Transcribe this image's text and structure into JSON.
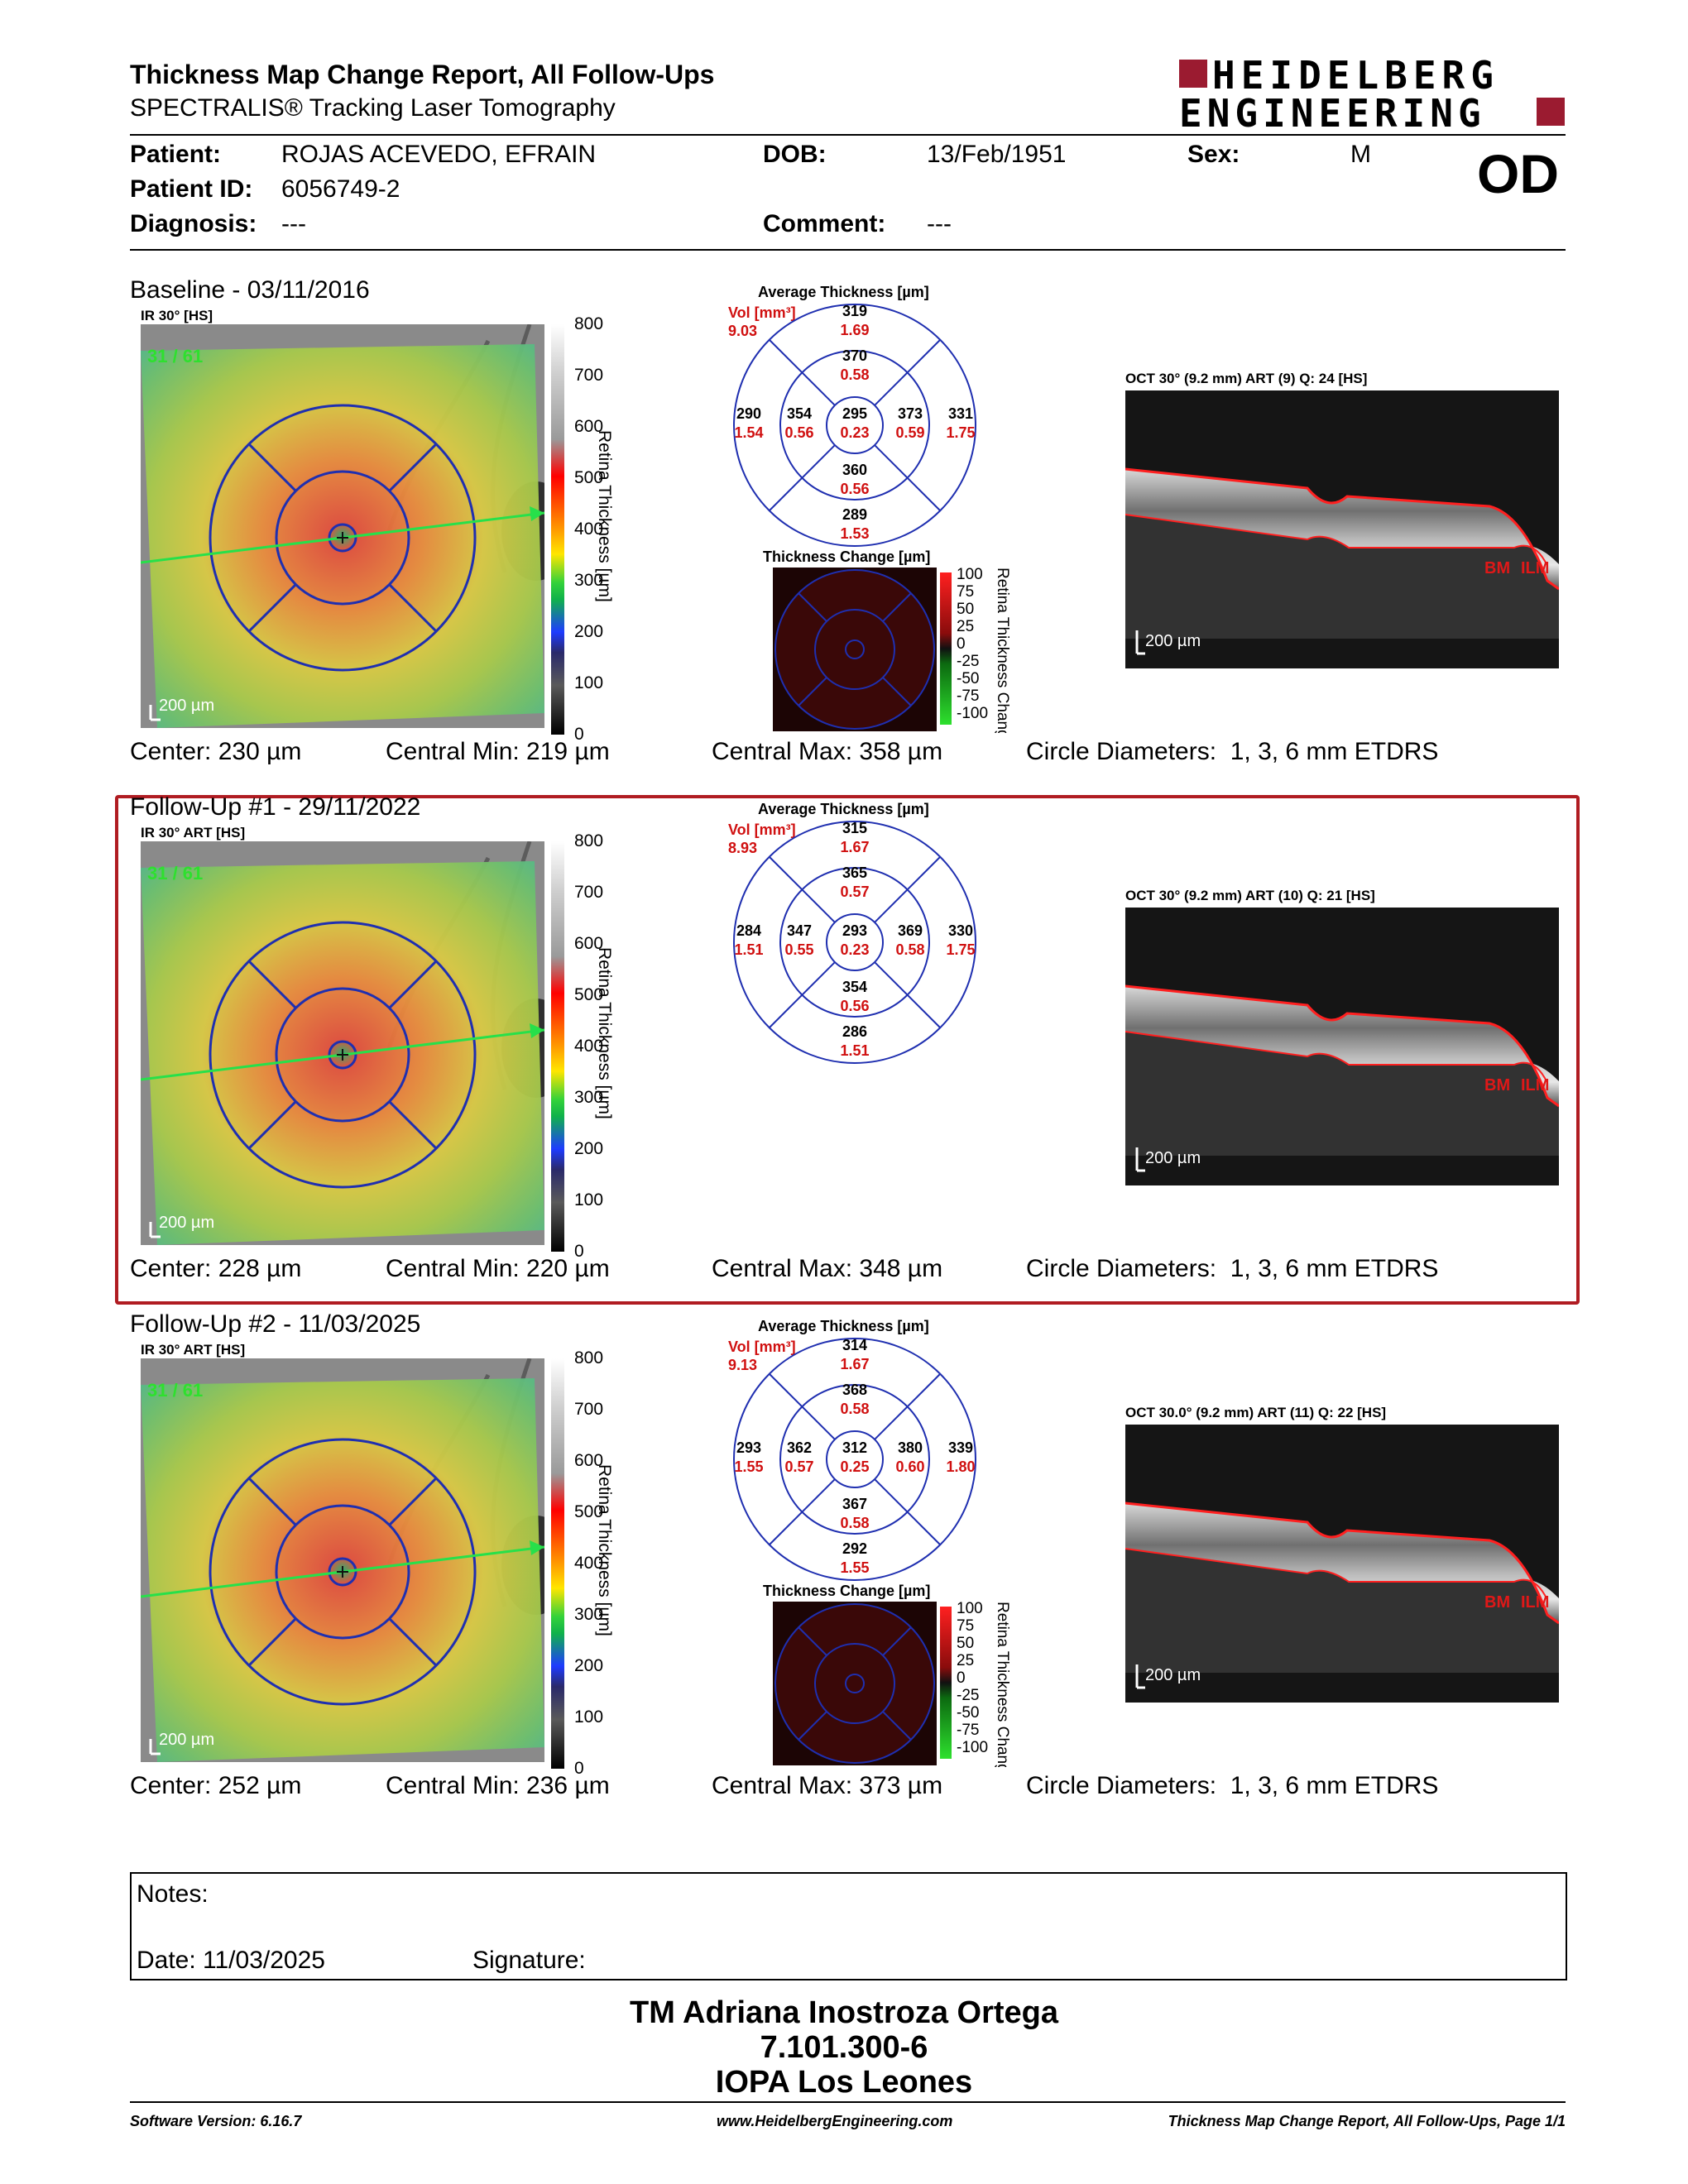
{
  "header": {
    "title": "Thickness Map Change Report, All Follow-Ups",
    "subtitle": "SPECTRALIS® Tracking Laser Tomography",
    "logo_line1": "HEIDELBERG",
    "logo_line2": "ENGINEERING",
    "brand_color": "#9b1b30"
  },
  "patient": {
    "patient_label": "Patient:",
    "patient_value": "ROJAS ACEVEDO, EFRAIN",
    "dob_label": "DOB:",
    "dob_value": "13/Feb/1951",
    "sex_label": "Sex:",
    "sex_value": "M",
    "id_label": "Patient ID:",
    "id_value": "6056749-2",
    "diagnosis_label": "Diagnosis:",
    "diagnosis_value": "---",
    "comment_label": "Comment:",
    "comment_value": "---",
    "eye": "OD"
  },
  "exams": [
    {
      "title": "Baseline - 03/11/2016",
      "ir_label": "IR 30° [HS]",
      "frames": "31 / 61",
      "scale_bar": "200 µm",
      "scale_ticks": [
        "800",
        "700",
        "600",
        "500",
        "400",
        "300",
        "200",
        "100",
        "0"
      ],
      "scale_axis": "Retina Thickness [µm]",
      "avg_title": "Average Thickness [µm]",
      "vol_label": "Vol [mm³]",
      "vol_value": "9.03",
      "etdrs": {
        "superior_outer": [
          "319",
          "1.69"
        ],
        "superior_inner": [
          "370",
          "0.58"
        ],
        "temporal_outer": [
          "290",
          "1.54"
        ],
        "temporal_inner": [
          "354",
          "0.56"
        ],
        "center": [
          "295",
          "0.23"
        ],
        "nasal_inner": [
          "373",
          "0.59"
        ],
        "nasal_outer": [
          "331",
          "1.75"
        ],
        "inferior_inner": [
          "360",
          "0.56"
        ],
        "inferior_outer": [
          "289",
          "1.53"
        ]
      },
      "has_change": true,
      "change_title": "Thickness Change [µm]",
      "change_ticks": [
        "100",
        "75",
        "50",
        "25",
        "0",
        "-25",
        "-50",
        "-75",
        "-100"
      ],
      "change_axis": "Retina Thickness Change",
      "oct_label": "OCT 30° (9.2 mm) ART (9) Q: 24 [HS]",
      "oct_scale": "200 µm",
      "bm": "BM",
      "ilm": "ILM",
      "stats": {
        "center": "Center: 230 µm",
        "cmin": "Central Min: 219 µm",
        "cmax": "Central Max: 358 µm",
        "diam": "Circle Diameters:  1, 3, 6 mm ETDRS"
      }
    },
    {
      "title": "Follow-Up #1 - 29/11/2022",
      "ir_label": "IR 30° ART [HS]",
      "frames": "31 / 61",
      "scale_bar": "200 µm",
      "scale_ticks": [
        "800",
        "700",
        "600",
        "500",
        "400",
        "300",
        "200",
        "100",
        "0"
      ],
      "scale_axis": "Retina Thickness [µm]",
      "avg_title": "Average Thickness [µm]",
      "vol_label": "Vol [mm³]",
      "vol_value": "8.93",
      "etdrs": {
        "superior_outer": [
          "315",
          "1.67"
        ],
        "superior_inner": [
          "365",
          "0.57"
        ],
        "temporal_outer": [
          "284",
          "1.51"
        ],
        "temporal_inner": [
          "347",
          "0.55"
        ],
        "center": [
          "293",
          "0.23"
        ],
        "nasal_inner": [
          "369",
          "0.58"
        ],
        "nasal_outer": [
          "330",
          "1.75"
        ],
        "inferior_inner": [
          "354",
          "0.56"
        ],
        "inferior_outer": [
          "286",
          "1.51"
        ]
      },
      "has_change": false,
      "oct_label": "OCT 30° (9.2 mm) ART (10) Q: 21 [HS]",
      "oct_scale": "200 µm",
      "bm": "BM",
      "ilm": "ILM",
      "stats": {
        "center": "Center: 228 µm",
        "cmin": "Central Min: 220 µm",
        "cmax": "Central Max: 348 µm",
        "diam": "Circle Diameters:  1, 3, 6 mm ETDRS"
      }
    },
    {
      "title": "Follow-Up #2 - 11/03/2025",
      "ir_label": "IR 30° ART [HS]",
      "frames": "31 / 61",
      "scale_bar": "200 µm",
      "scale_ticks": [
        "800",
        "700",
        "600",
        "500",
        "400",
        "300",
        "200",
        "100",
        "0"
      ],
      "scale_axis": "Retina Thickness [µm]",
      "avg_title": "Average Thickness [µm]",
      "vol_label": "Vol [mm³]",
      "vol_value": "9.13",
      "etdrs": {
        "superior_outer": [
          "314",
          "1.67"
        ],
        "superior_inner": [
          "368",
          "0.58"
        ],
        "temporal_outer": [
          "293",
          "1.55"
        ],
        "temporal_inner": [
          "362",
          "0.57"
        ],
        "center": [
          "312",
          "0.25"
        ],
        "nasal_inner": [
          "380",
          "0.60"
        ],
        "nasal_outer": [
          "339",
          "1.80"
        ],
        "inferior_inner": [
          "367",
          "0.58"
        ],
        "inferior_outer": [
          "292",
          "1.55"
        ]
      },
      "has_change": true,
      "change_title": "Thickness Change [µm]",
      "change_ticks": [
        "100",
        "75",
        "50",
        "25",
        "0",
        "-25",
        "-50",
        "-75",
        "-100"
      ],
      "change_axis": "Retina Thickness Change",
      "oct_label": "OCT 30.0° (9.2 mm) ART (11) Q: 22 [HS]",
      "oct_scale": "200 µm",
      "bm": "BM",
      "ilm": "ILM",
      "stats": {
        "center": "Center: 252 µm",
        "cmin": "Central Min: 236 µm",
        "cmax": "Central Max: 373 µm",
        "diam": "Circle Diameters:  1, 3, 6 mm ETDRS"
      }
    }
  ],
  "notes": {
    "notes_label": "Notes:",
    "date_label": "Date: 11/03/2025",
    "signature_label": "Signature:"
  },
  "signatory": {
    "name": "TM Adriana Inostroza Ortega",
    "rut": "7.101.300-6",
    "org": "IOPA Los Leones"
  },
  "footer": {
    "software": "Software Version: 6.16.7",
    "website": "www.HeidelbergEngineering.com",
    "page": "Thickness Map Change Report, All Follow-Ups, Page 1/1"
  }
}
